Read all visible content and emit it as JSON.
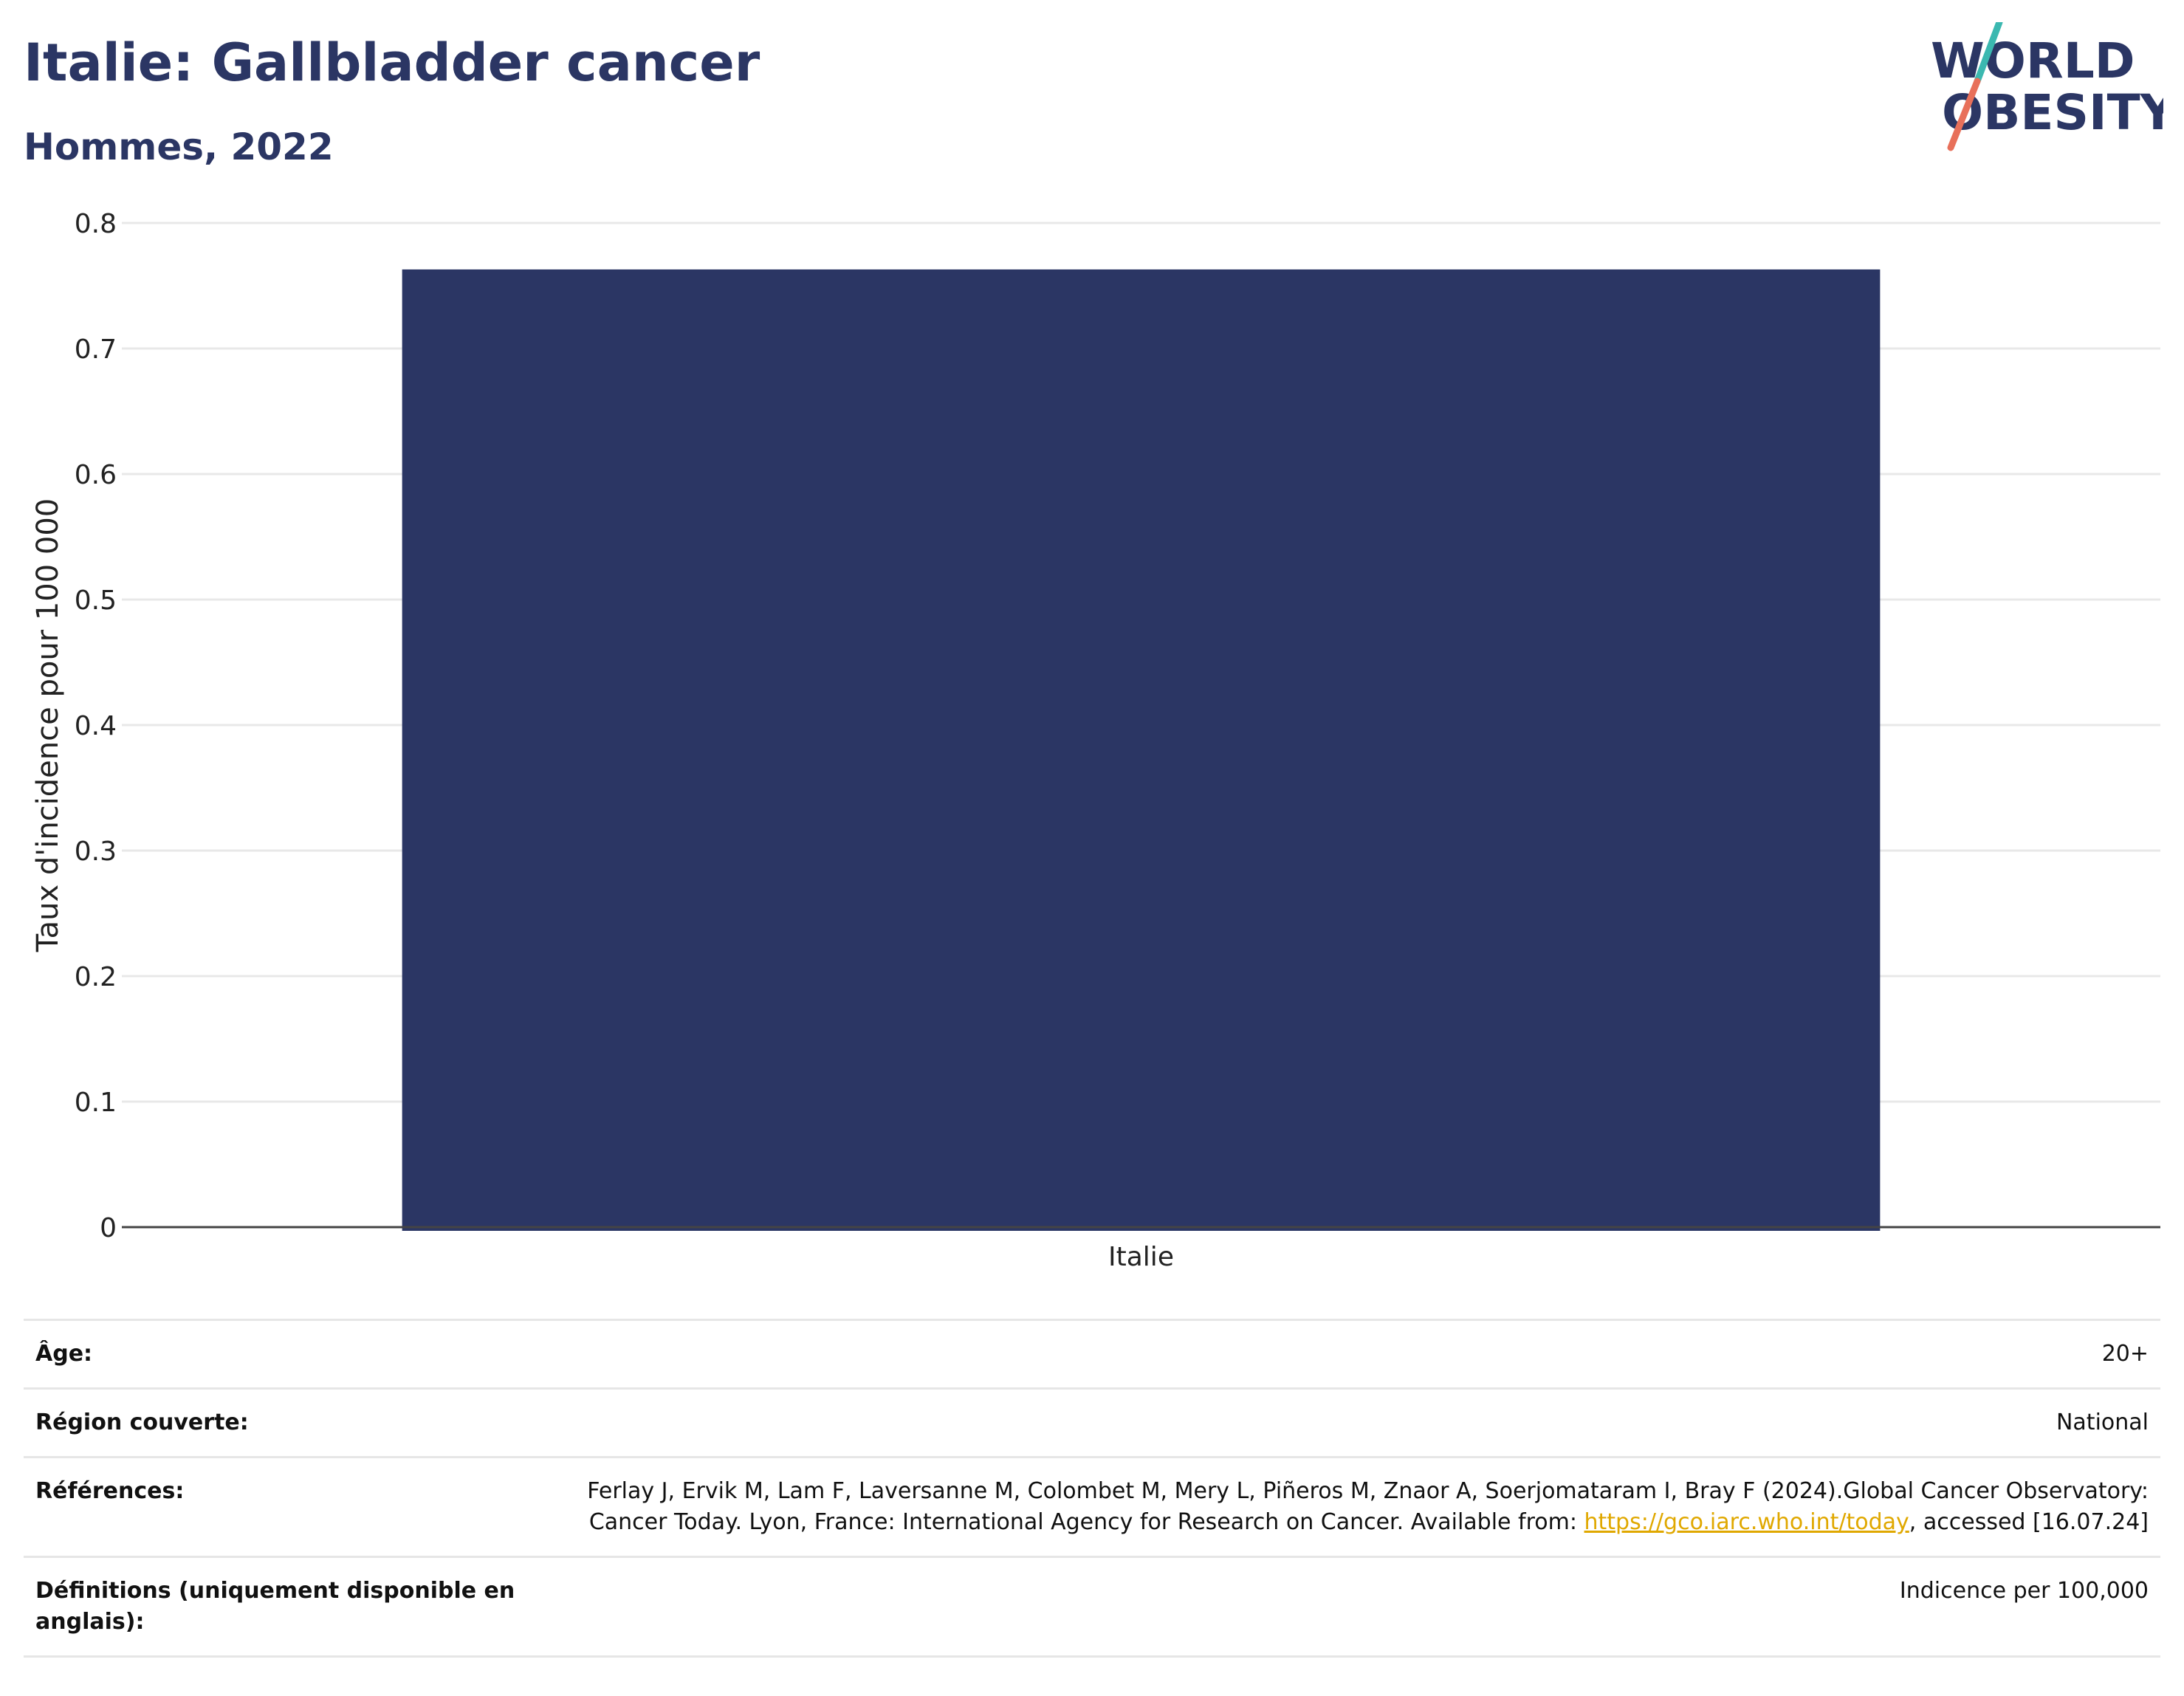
{
  "header": {
    "title": "Italie: Gallbladder cancer",
    "subtitle": "Hommes, 2022"
  },
  "logo": {
    "line1": "WORLD",
    "line2": "OBESITY",
    "colors": {
      "text": "#2b3664",
      "slash_top": "#3bb8b0",
      "slash_bottom": "#e8705a"
    }
  },
  "chart_data": {
    "type": "bar",
    "categories": [
      "Italie"
    ],
    "values": [
      0.763
    ],
    "ylabel": "Taux d'incidence pour 100 000",
    "ylim": [
      0,
      0.8
    ],
    "yticks": [
      0,
      0.1,
      0.2,
      0.3,
      0.4,
      0.5,
      0.6,
      0.7,
      0.8
    ],
    "ytick_labels": [
      "0",
      "0.1",
      "0.2",
      "0.3",
      "0.4",
      "0.5",
      "0.6",
      "0.7",
      "0.8"
    ],
    "grid": true,
    "bar_color": "#2b3664"
  },
  "meta": {
    "age_label": "Âge:",
    "age_value": "20+",
    "region_label": "Région couverte:",
    "region_value": "National",
    "references_label": "Références:",
    "references_text": "Ferlay J, Ervik M, Lam F, Laversanne M, Colombet M, Mery L, Piñeros M, Znaor A, Soerjomataram I, Bray F (2024).Global Cancer Observatory: Cancer Today. Lyon, France: International Agency for Research on Cancer. Available from: ",
    "references_link": "https://gco.iarc.who.int/today",
    "references_suffix": ", accessed [16.07.24]",
    "definitions_label": "Définitions (uniquement disponible en anglais):",
    "definitions_value": "Indicence per 100,000"
  }
}
